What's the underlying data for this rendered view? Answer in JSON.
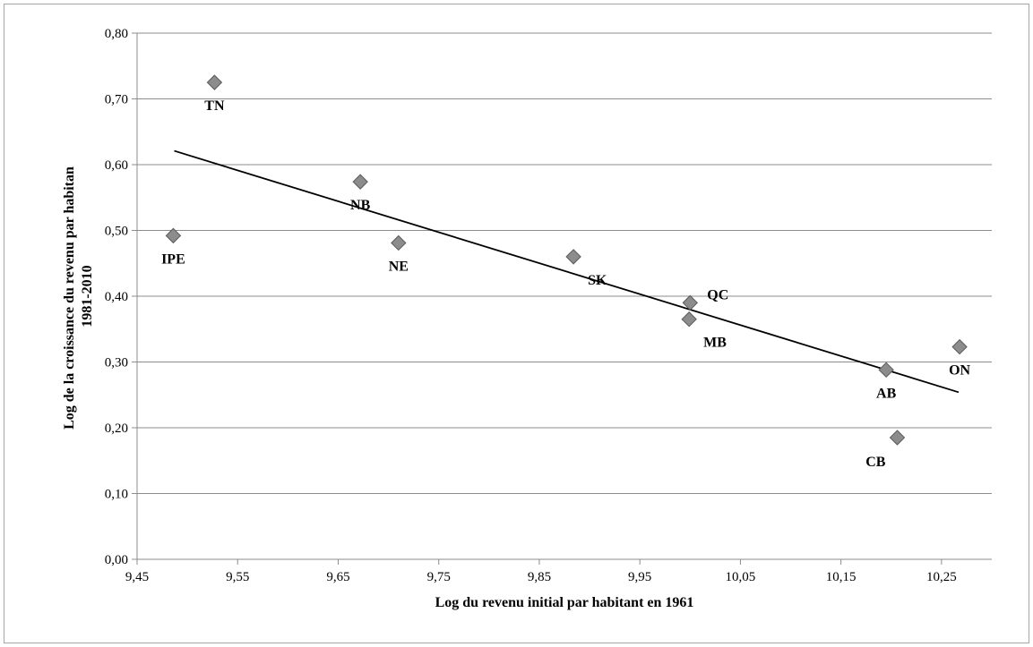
{
  "chart_data": {
    "type": "scatter",
    "title": "",
    "xlabel": "Log du revenu initial par habitant en 1961",
    "ylabel": "Log de la croissance du revenu par habitan 1981-2010",
    "ylabel_lines": [
      "Log de la croissance du revenu par habitan",
      "1981-2010"
    ],
    "xlim": [
      9.45,
      10.3
    ],
    "ylim": [
      0.0,
      0.8
    ],
    "x_ticks": [
      9.45,
      9.55,
      9.65,
      9.75,
      9.85,
      9.95,
      10.05,
      10.15,
      10.25
    ],
    "x_tick_labels": [
      "9,45",
      "9,55",
      "9,65",
      "9,75",
      "9,85",
      "9,95",
      "10,05",
      "10,15",
      "10,25"
    ],
    "y_ticks": [
      0.0,
      0.1,
      0.2,
      0.3,
      0.4,
      0.5,
      0.6,
      0.7,
      0.8
    ],
    "y_tick_labels": [
      "0,00",
      "0,10",
      "0,20",
      "0,30",
      "0,40",
      "0,50",
      "0,60",
      "0,70",
      "0,80"
    ],
    "grid": "horizontal",
    "points": [
      {
        "label": "TN",
        "x": 9.527,
        "y": 0.725,
        "label_pos": "below"
      },
      {
        "label": "IPE",
        "x": 9.486,
        "y": 0.492,
        "label_pos": "below"
      },
      {
        "label": "NB",
        "x": 9.672,
        "y": 0.574,
        "label_pos": "below"
      },
      {
        "label": "NE",
        "x": 9.71,
        "y": 0.481,
        "label_pos": "below"
      },
      {
        "label": "SK",
        "x": 9.884,
        "y": 0.46,
        "label_pos": "below-right"
      },
      {
        "label": "QC",
        "x": 10.0,
        "y": 0.39,
        "label_pos": "right"
      },
      {
        "label": "MB",
        "x": 9.999,
        "y": 0.365,
        "label_pos": "below-right"
      },
      {
        "label": "AB",
        "x": 10.195,
        "y": 0.288,
        "label_pos": "below"
      },
      {
        "label": "CB",
        "x": 10.206,
        "y": 0.185,
        "label_pos": "below-left"
      },
      {
        "label": "ON",
        "x": 10.268,
        "y": 0.323,
        "label_pos": "below"
      }
    ],
    "trendline": {
      "x": [
        9.487,
        10.267
      ],
      "y": [
        0.621,
        0.254
      ]
    },
    "colors": {
      "marker_fill": "#8c8c8c",
      "marker_stroke": "#5a5a5a",
      "grid": "#8c8c8c",
      "trendline": "#000000"
    }
  }
}
